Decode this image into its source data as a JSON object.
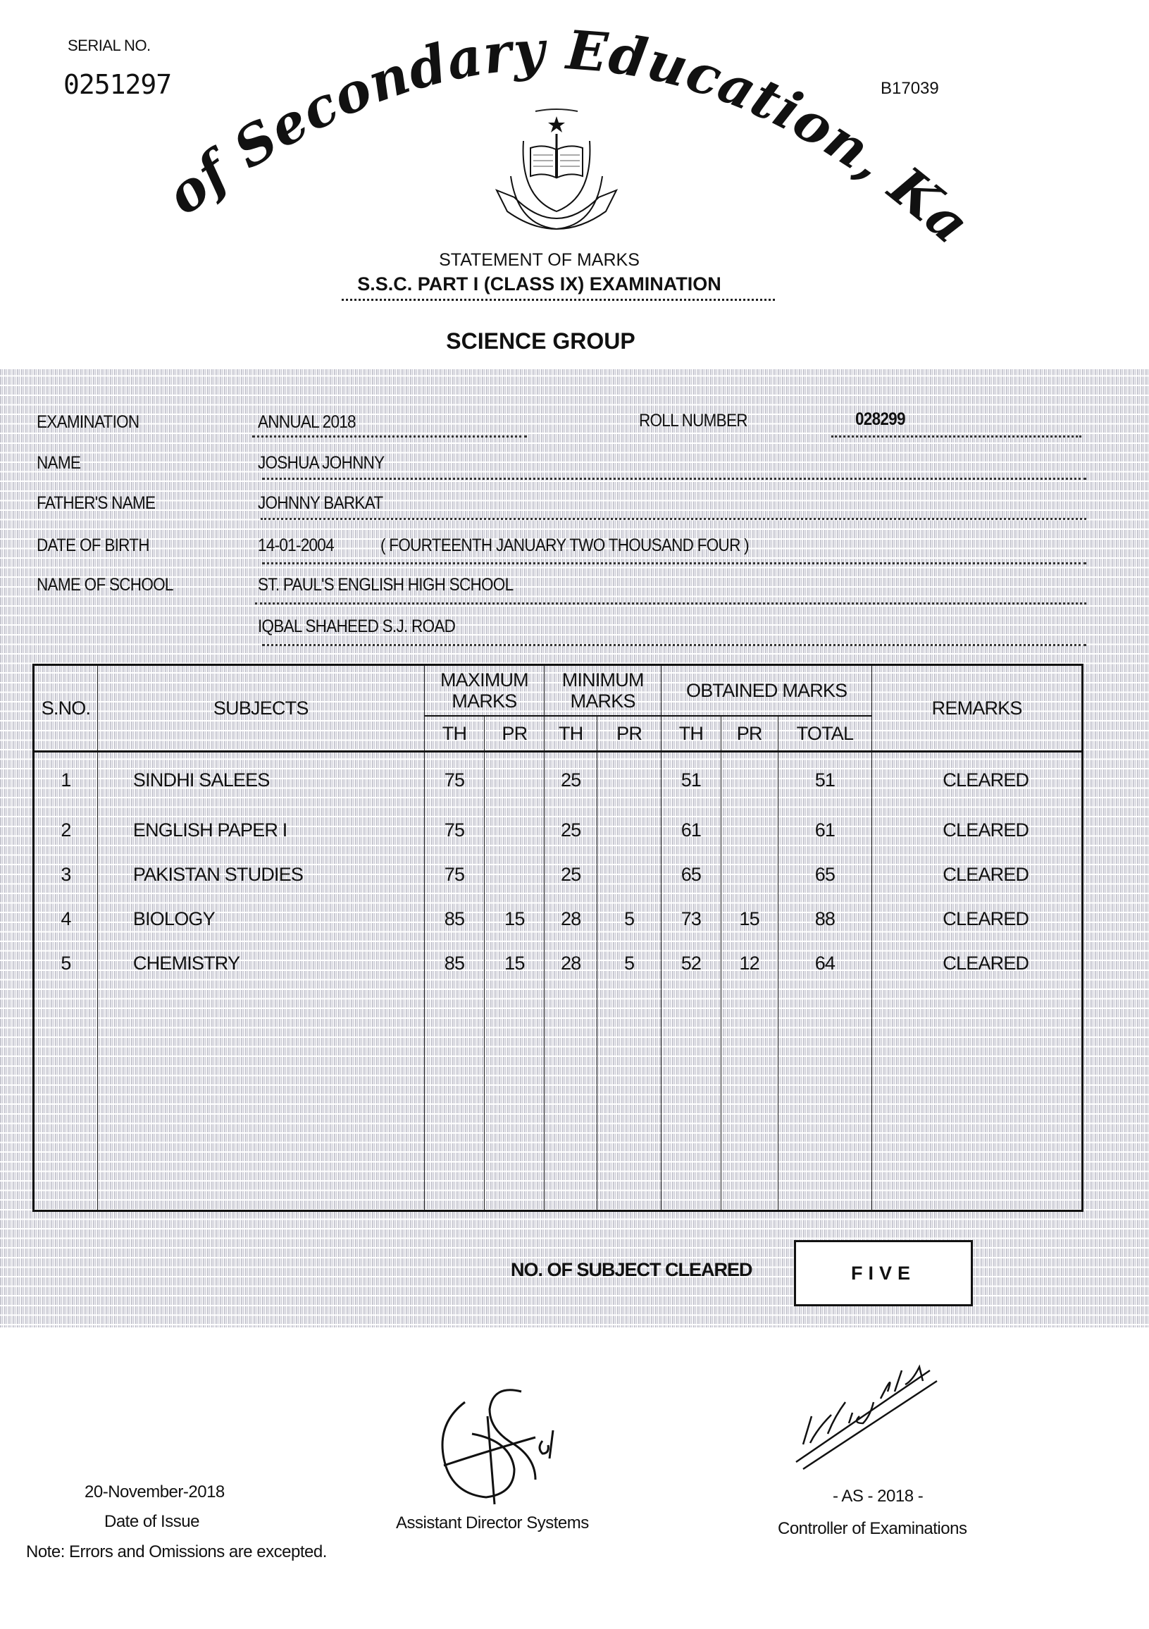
{
  "header": {
    "serial_label": "SERIAL NO.",
    "serial_number": "0251297",
    "code": "B17039",
    "board_name": "Board of Secondary Education, Karachi",
    "statement_title": "STATEMENT OF MARKS",
    "exam_title": "S.S.C. PART I (CLASS IX) EXAMINATION",
    "group": "SCIENCE GROUP"
  },
  "watermark_text": "HIBSEKARAC",
  "fields": {
    "examination": {
      "label": "EXAMINATION",
      "value": "ANNUAL 2018"
    },
    "roll_number": {
      "label": "ROLL NUMBER",
      "value": "028299"
    },
    "name": {
      "label": "NAME",
      "value": "JOSHUA JOHNNY"
    },
    "father_name": {
      "label": "FATHER'S NAME",
      "value": "JOHNNY BARKAT"
    },
    "date_of_birth": {
      "label": "DATE OF BIRTH",
      "value": "14-01-2004",
      "words": "( FOURTEENTH JANUARY TWO THOUSAND FOUR )"
    },
    "school": {
      "label": "NAME OF SCHOOL",
      "value": "ST. PAUL'S ENGLISH HIGH SCHOOL",
      "address": "IQBAL SHAHEED S.J. ROAD"
    }
  },
  "table": {
    "headers": {
      "sno": "S.NO.",
      "subjects": "SUBJECTS",
      "maximum": "MAXIMUM MARKS",
      "minimum": "MINIMUM MARKS",
      "obtained": "OBTAINED MARKS",
      "remarks": "REMARKS",
      "th": "TH",
      "pr": "PR",
      "total": "TOTAL"
    },
    "rows": [
      {
        "sno": "1",
        "subject": "SINDHI SALEES",
        "max_th": "75",
        "max_pr": "",
        "min_th": "25",
        "min_pr": "",
        "obt_th": "51",
        "obt_pr": "",
        "total": "51",
        "remarks": "CLEARED"
      },
      {
        "sno": "2",
        "subject": "ENGLISH PAPER I",
        "max_th": "75",
        "max_pr": "",
        "min_th": "25",
        "min_pr": "",
        "obt_th": "61",
        "obt_pr": "",
        "total": "61",
        "remarks": "CLEARED"
      },
      {
        "sno": "3",
        "subject": "PAKISTAN STUDIES",
        "max_th": "75",
        "max_pr": "",
        "min_th": "25",
        "min_pr": "",
        "obt_th": "65",
        "obt_pr": "",
        "total": "65",
        "remarks": "CLEARED"
      },
      {
        "sno": "4",
        "subject": "BIOLOGY",
        "max_th": "85",
        "max_pr": "15",
        "min_th": "28",
        "min_pr": "5",
        "obt_th": "73",
        "obt_pr": "15",
        "total": "88",
        "remarks": "CLEARED"
      },
      {
        "sno": "5",
        "subject": "CHEMISTRY",
        "max_th": "85",
        "max_pr": "15",
        "min_th": "28",
        "min_pr": "5",
        "obt_th": "52",
        "obt_pr": "12",
        "total": "64",
        "remarks": "CLEARED"
      }
    ]
  },
  "summary": {
    "label": "NO. OF SUBJECT CLEARED",
    "value": "FIVE"
  },
  "footer": {
    "issue_date": "20-November-2018",
    "issue_date_label": "Date of Issue",
    "assistant_director": "Assistant Director Systems",
    "controller_code": "- AS - 2018 -",
    "controller": "Controller of Examinations",
    "note": "Note: Errors and Omissions are excepted."
  }
}
